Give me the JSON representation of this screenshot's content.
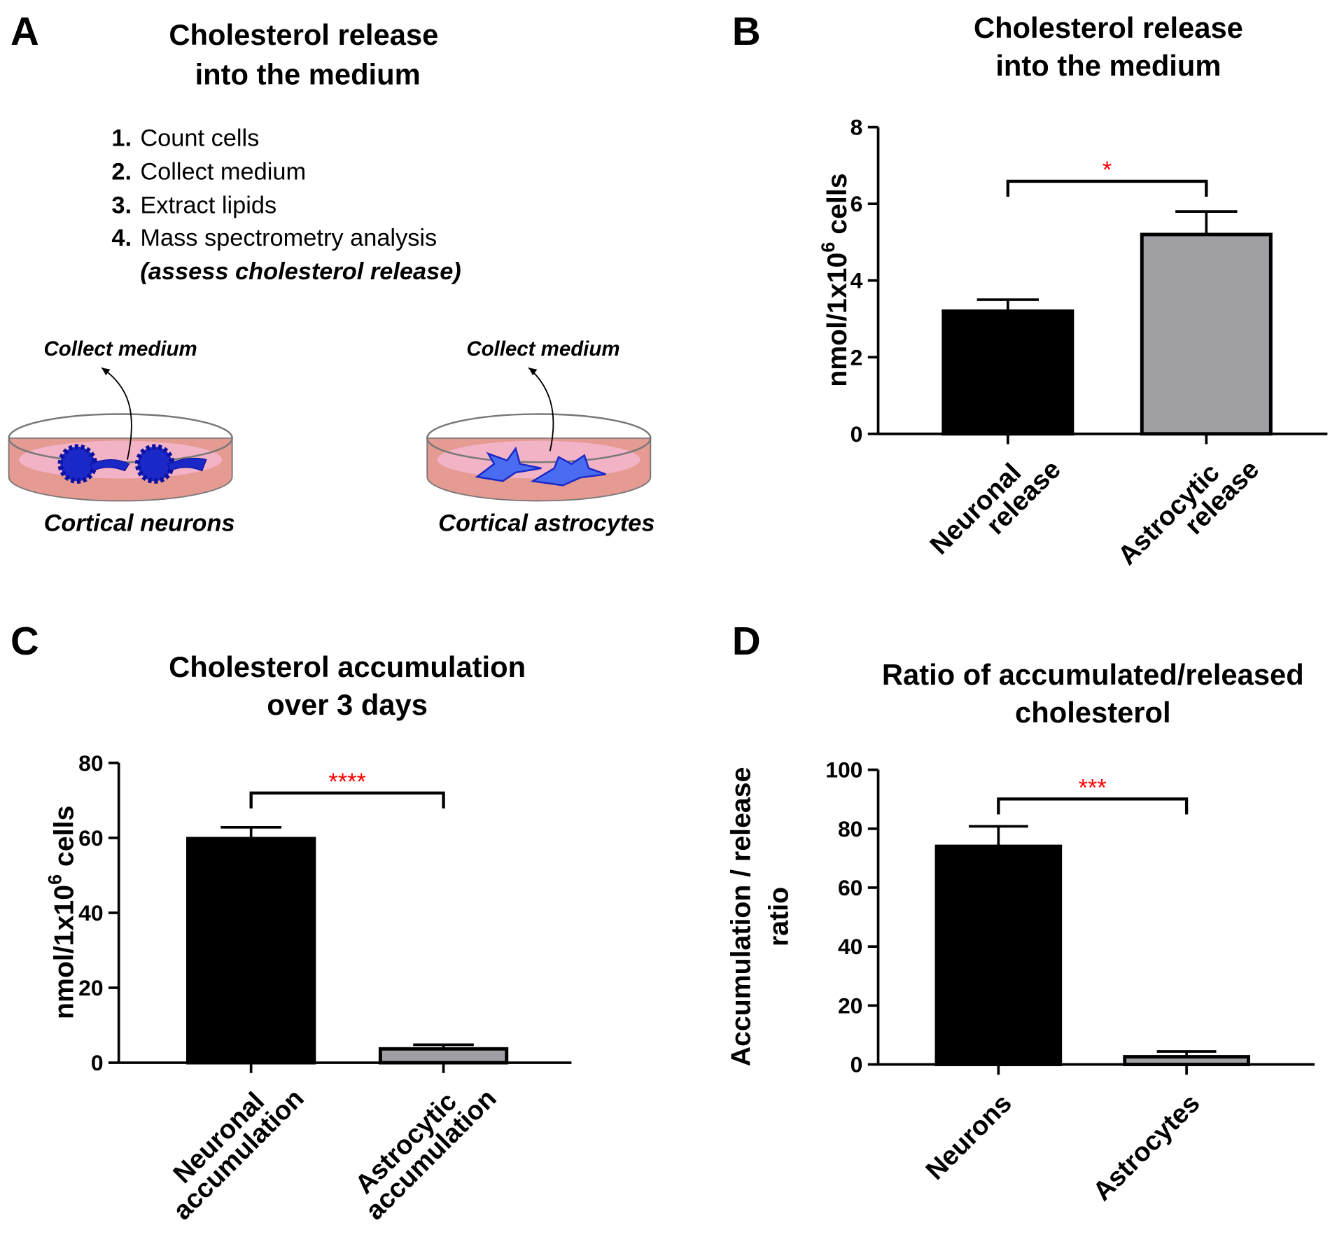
{
  "panel_a": {
    "label": "A",
    "title": [
      "Cholesterol release",
      "into the medium"
    ],
    "steps": [
      {
        "number": "1.",
        "text": "Count cells"
      },
      {
        "number": "2.",
        "text": "Collect medium"
      },
      {
        "number": "3.",
        "text": "Extract lipids"
      },
      {
        "number": "4.",
        "text": "Mass spectrometry analysis"
      }
    ],
    "step_note": "(assess cholesterol release)",
    "dishes": [
      {
        "action": "Collect medium",
        "label": "Cortical neurons"
      },
      {
        "action": "Collect medium",
        "label": "Cortical astrocytes"
      }
    ]
  },
  "chart_data": [
    {
      "type": "bar",
      "label": "B",
      "title": [
        "Cholesterol release",
        "into the medium"
      ],
      "ylabel": [
        {
          "text": "nmol/1x10",
          "sup": "6",
          "suffix": " cells"
        }
      ],
      "categories": [
        [
          "Neuronal",
          "release"
        ],
        [
          "Astrocytic",
          "release"
        ]
      ],
      "values": [
        3.2,
        5.2
      ],
      "errors": [
        0.3,
        0.6
      ],
      "colors": [
        "#000000",
        "#a0a0a4"
      ],
      "ylim": [
        0,
        8
      ],
      "yticks": [
        0,
        2,
        4,
        6,
        8
      ],
      "significance": {
        "text": "*",
        "color": "#ff0000"
      }
    },
    {
      "type": "bar",
      "label": "C",
      "title": [
        "Cholesterol accumulation",
        "over 3 days"
      ],
      "ylabel": [
        {
          "text": "nmol/1x10",
          "sup": "6",
          "suffix": " cells"
        }
      ],
      "categories": [
        [
          "Neuronal",
          "accumulation"
        ],
        [
          "Astrocytic",
          "accumulation"
        ]
      ],
      "values": [
        59.8,
        3.7
      ],
      "errors": [
        3,
        1.1
      ],
      "colors": [
        "#000000",
        "#a0a0a4"
      ],
      "ylim": [
        0,
        80
      ],
      "yticks": [
        0,
        20,
        40,
        60,
        80
      ],
      "significance": {
        "text": "****",
        "color": "#ff0000"
      }
    },
    {
      "type": "bar",
      "label": "D",
      "title": [
        "Ratio of accumulated/released",
        "cholesterol"
      ],
      "ylabel": [
        {
          "text": "Accumulation / release"
        },
        {
          "text": "ratio"
        }
      ],
      "categories": [
        [
          "Neurons"
        ],
        [
          "Astrocytes"
        ]
      ],
      "values": [
        74,
        2.6
      ],
      "errors": [
        6.8,
        1.8
      ],
      "colors": [
        "#000000",
        "#a0a0a4"
      ],
      "ylim": [
        0,
        100
      ],
      "yticks": [
        0,
        20,
        40,
        60,
        80,
        100
      ],
      "significance": {
        "text": "***",
        "color": "#ff0000"
      }
    }
  ]
}
